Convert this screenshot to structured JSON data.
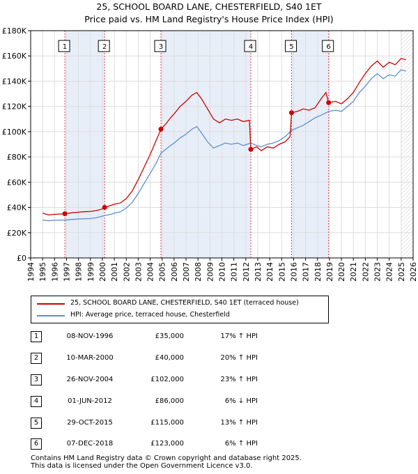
{
  "title": "25, SCHOOL BOARD LANE, CHESTERFIELD, S40 1ET",
  "subtitle": "Price paid vs. HM Land Registry's House Price Index (HPI)",
  "colors": {
    "property": "#cc0000",
    "hpi": "#5b8fd0",
    "band": "#e8eef8",
    "grid": "#dddddd"
  },
  "legend": {
    "property": "25, SCHOOL BOARD LANE, CHESTERFIELD, S40 1ET (terraced house)",
    "hpi": "HPI: Average price, terraced house, Chesterfield"
  },
  "transactions": [
    {
      "num": "1",
      "date": "08-NOV-1996",
      "price": "£35,000",
      "hpi": "17% ↑ HPI"
    },
    {
      "num": "2",
      "date": "10-MAR-2000",
      "price": "£40,000",
      "hpi": "20% ↑ HPI"
    },
    {
      "num": "3",
      "date": "26-NOV-2004",
      "price": "£102,000",
      "hpi": "23% ↑ HPI"
    },
    {
      "num": "4",
      "date": "01-JUN-2012",
      "price": "£86,000",
      "hpi": "6% ↓ HPI"
    },
    {
      "num": "5",
      "date": "29-OCT-2015",
      "price": "£115,000",
      "hpi": "13% ↑ HPI"
    },
    {
      "num": "6",
      "date": "07-DEC-2018",
      "price": "£123,000",
      "hpi": "6% ↑ HPI"
    }
  ],
  "footer": {
    "line1": "Contains HM Land Registry data © Crown copyright and database right 2025.",
    "line2": "This data is licensed under the Open Government Licence v3.0."
  },
  "chart_data": {
    "type": "line",
    "title": "25, SCHOOL BOARD LANE, CHESTERFIELD, S40 1ET",
    "subtitle": "Price paid vs. HM Land Registry's House Price Index (HPI)",
    "xlim": [
      1994,
      2026
    ],
    "ylim": [
      0,
      180000
    ],
    "x_ticks": [
      1994,
      1995,
      1996,
      1997,
      1998,
      1999,
      2000,
      2001,
      2002,
      2003,
      2004,
      2005,
      2006,
      2007,
      2008,
      2009,
      2010,
      2011,
      2012,
      2013,
      2014,
      2015,
      2016,
      2017,
      2018,
      2019,
      2020,
      2021,
      2022,
      2023,
      2024,
      2025,
      2026
    ],
    "y_ticks": [
      0,
      20000,
      40000,
      60000,
      80000,
      100000,
      120000,
      140000,
      160000,
      180000
    ],
    "y_tick_labels": [
      "£0",
      "£20K",
      "£40K",
      "£60K",
      "£80K",
      "£100K",
      "£120K",
      "£140K",
      "£160K",
      "£180K"
    ],
    "shaded_bands": [
      [
        1996.86,
        2000.19
      ],
      [
        2004.9,
        2012.42
      ],
      [
        2015.83,
        2018.93
      ]
    ],
    "sales": [
      {
        "label": "1",
        "x": 1996.86,
        "y": 35000
      },
      {
        "label": "2",
        "x": 2000.19,
        "y": 40000
      },
      {
        "label": "3",
        "x": 2004.9,
        "y": 102000
      },
      {
        "label": "4",
        "x": 2012.42,
        "y": 86000
      },
      {
        "label": "5",
        "x": 2015.83,
        "y": 115000
      },
      {
        "label": "6",
        "x": 2018.93,
        "y": 123000
      }
    ],
    "series": [
      {
        "name": "25, SCHOOL BOARD LANE, CHESTERFIELD, S40 1ET (terraced house)",
        "color": "#cc0000",
        "points": [
          [
            1995.0,
            35500
          ],
          [
            1995.5,
            34000
          ],
          [
            1996.0,
            34500
          ],
          [
            1996.5,
            34800
          ],
          [
            1996.86,
            35000
          ],
          [
            1997.5,
            35800
          ],
          [
            1998.0,
            36200
          ],
          [
            1998.5,
            36600
          ],
          [
            1999.0,
            36800
          ],
          [
            1999.5,
            37500
          ],
          [
            2000.0,
            38800
          ],
          [
            2000.19,
            40000
          ],
          [
            2000.7,
            41500
          ],
          [
            2001.0,
            42500
          ],
          [
            2001.5,
            43500
          ],
          [
            2002.0,
            47000
          ],
          [
            2002.5,
            53000
          ],
          [
            2003.0,
            62000
          ],
          [
            2003.5,
            72000
          ],
          [
            2004.0,
            82000
          ],
          [
            2004.5,
            93000
          ],
          [
            2004.9,
            102000
          ],
          [
            2005.3,
            106000
          ],
          [
            2005.7,
            111000
          ],
          [
            2006.0,
            114000
          ],
          [
            2006.5,
            120000
          ],
          [
            2007.0,
            124000
          ],
          [
            2007.5,
            129000
          ],
          [
            2007.9,
            131000
          ],
          [
            2008.3,
            126000
          ],
          [
            2008.8,
            118000
          ],
          [
            2009.3,
            110000
          ],
          [
            2009.8,
            107000
          ],
          [
            2010.3,
            110000
          ],
          [
            2010.8,
            109000
          ],
          [
            2011.3,
            110000
          ],
          [
            2011.8,
            108000
          ],
          [
            2012.3,
            109000
          ],
          [
            2012.42,
            86000
          ],
          [
            2012.9,
            88000
          ],
          [
            2013.3,
            85000
          ],
          [
            2013.8,
            88000
          ],
          [
            2014.3,
            87000
          ],
          [
            2014.8,
            90000
          ],
          [
            2015.3,
            92000
          ],
          [
            2015.7,
            96000
          ],
          [
            2015.83,
            115000
          ],
          [
            2016.3,
            116000
          ],
          [
            2016.8,
            118000
          ],
          [
            2017.3,
            117000
          ],
          [
            2017.8,
            119000
          ],
          [
            2018.3,
            126000
          ],
          [
            2018.7,
            131000
          ],
          [
            2018.93,
            123000
          ],
          [
            2019.5,
            124000
          ],
          [
            2020.0,
            122000
          ],
          [
            2020.5,
            126000
          ],
          [
            2021.0,
            131000
          ],
          [
            2021.5,
            139000
          ],
          [
            2022.0,
            146000
          ],
          [
            2022.5,
            152000
          ],
          [
            2023.0,
            156000
          ],
          [
            2023.5,
            151000
          ],
          [
            2024.0,
            155000
          ],
          [
            2024.5,
            153000
          ],
          [
            2025.0,
            158000
          ],
          [
            2025.4,
            157000
          ]
        ]
      },
      {
        "name": "HPI: Average price, terraced house, Chesterfield",
        "color": "#5b8fd0",
        "points": [
          [
            1995.0,
            30000
          ],
          [
            1995.5,
            29500
          ],
          [
            1996.0,
            29800
          ],
          [
            1996.86,
            30000
          ],
          [
            1997.5,
            30500
          ],
          [
            1998.0,
            30800
          ],
          [
            1998.5,
            31000
          ],
          [
            1999.0,
            31200
          ],
          [
            1999.5,
            31800
          ],
          [
            2000.19,
            33500
          ],
          [
            2000.7,
            34500
          ],
          [
            2001.0,
            35500
          ],
          [
            2001.5,
            36500
          ],
          [
            2002.0,
            39500
          ],
          [
            2002.5,
            44000
          ],
          [
            2003.0,
            51000
          ],
          [
            2003.5,
            59000
          ],
          [
            2004.0,
            67000
          ],
          [
            2004.5,
            75000
          ],
          [
            2004.9,
            83000
          ],
          [
            2005.3,
            86000
          ],
          [
            2005.7,
            89000
          ],
          [
            2006.0,
            91000
          ],
          [
            2006.5,
            95000
          ],
          [
            2007.0,
            98000
          ],
          [
            2007.5,
            102000
          ],
          [
            2007.9,
            104000
          ],
          [
            2008.3,
            99000
          ],
          [
            2008.8,
            92000
          ],
          [
            2009.3,
            87000
          ],
          [
            2009.8,
            89000
          ],
          [
            2010.3,
            91000
          ],
          [
            2010.8,
            90000
          ],
          [
            2011.3,
            91000
          ],
          [
            2011.8,
            89000
          ],
          [
            2012.42,
            91000
          ],
          [
            2012.9,
            89000
          ],
          [
            2013.3,
            88000
          ],
          [
            2013.8,
            90000
          ],
          [
            2014.3,
            91000
          ],
          [
            2014.8,
            93000
          ],
          [
            2015.3,
            96000
          ],
          [
            2015.83,
            101000
          ],
          [
            2016.3,
            103000
          ],
          [
            2016.8,
            105000
          ],
          [
            2017.3,
            108000
          ],
          [
            2017.8,
            111000
          ],
          [
            2018.3,
            113000
          ],
          [
            2018.93,
            116000
          ],
          [
            2019.5,
            117000
          ],
          [
            2020.0,
            116000
          ],
          [
            2020.5,
            120000
          ],
          [
            2021.0,
            124000
          ],
          [
            2021.5,
            131000
          ],
          [
            2022.0,
            136000
          ],
          [
            2022.5,
            142000
          ],
          [
            2023.0,
            146000
          ],
          [
            2023.5,
            142000
          ],
          [
            2024.0,
            145000
          ],
          [
            2024.5,
            144000
          ],
          [
            2025.0,
            149000
          ],
          [
            2025.4,
            148000
          ]
        ]
      }
    ]
  }
}
